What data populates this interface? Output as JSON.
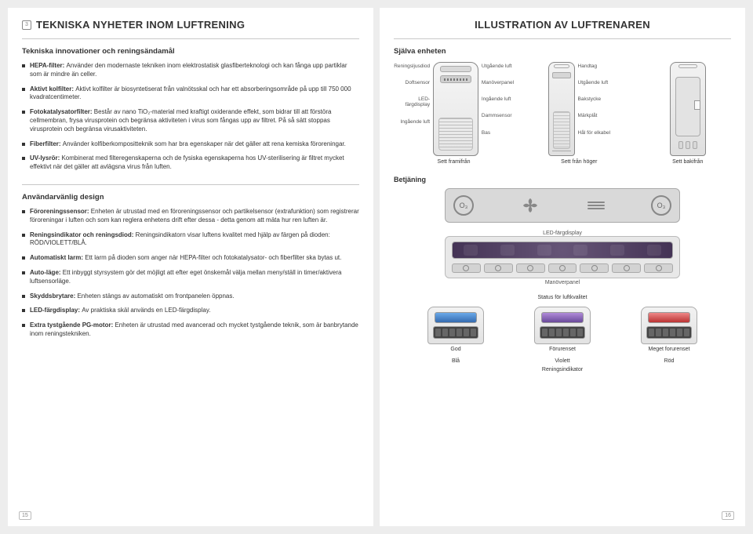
{
  "left": {
    "badge": "3",
    "title": "TEKNISKA NYHETER INOM LUFTRENING",
    "sub1": "Tekniska innovationer och reningsändamål",
    "items1": [
      {
        "bold": "HEPA-filter:",
        "text": "Använder den modernaste tekniken inom elektrostatisk glasfiberteknologi och kan fånga upp partiklar som är mindre än celler."
      },
      {
        "bold": "Aktivt kolfilter:",
        "text": "Aktivt kolfilter är biosyntetiserat från valnötsskal och har ett absorberingsområde på upp till 750 000 kvadratcentimeter."
      },
      {
        "bold": "Fotokatalysatorfilter:",
        "text": "Består av nano TiO₂-material med kraftigt oxiderande effekt, som bidrar till att förstöra cellmembran, frysa virusprotein och begränsa aktiviteten i virus som fångas upp av filtret. På så sätt stoppas virusprotein och begränsa virusaktiviteten."
      },
      {
        "bold": "Fiberfilter:",
        "text": "Använder kolfiberkompositteknik som har bra egenskaper när det gäller att rena kemiska föroreningar."
      },
      {
        "bold": "UV-lysrör:",
        "text": "Kombinerat med filteregenskaperna och de fysiska egenskaperna hos UV-sterilisering är filtret mycket effektivt när det gäller att avlägsna virus från luften."
      }
    ],
    "sub2": "Användarvänlig design",
    "items2": [
      {
        "bold": "Föroreningssensor:",
        "text": "Enheten är utrustad med en föroreningssensor och partikelsensor (extrafunktion) som registrerar föroreningar i luften och som kan reglera enhetens drift efter dessa - detta genom att mäta hur ren luften är."
      },
      {
        "bold": "Reningsindikator och reningsdiod:",
        "text": "Reningsindikatorn visar luftens kvalitet med hjälp av färgen på dioden: RÖD/VIOLETT/BLÅ."
      },
      {
        "bold": "Automatiskt larm:",
        "text": "Ett larm på dioden som anger när HEPA-filter och fotokatalysator- och fiberfilter ska bytas ut."
      },
      {
        "bold": "Auto-läge:",
        "text": "Ett inbyggt styrsystem gör det möjligt att efter eget önskemål välja mellan meny/ställ in timer/aktivera luftsensorläge."
      },
      {
        "bold": "Skyddsbrytare:",
        "text": "Enheten stängs av automatiskt om frontpanelen öppnas."
      },
      {
        "bold": "LED-färgdisplay:",
        "text": "Av praktiska skäl används en LED-färgdisplay."
      },
      {
        "bold": "Extra tystgående PG-motor:",
        "text": "Enheten är utrustad med avancerad och mycket tystgående teknik, som är banbrytande inom reningstekniken."
      }
    ],
    "pagenum": "15"
  },
  "right": {
    "title": "ILLUSTRATION AV LUFTRENAREN",
    "sub1": "Själva enheten",
    "labels": {
      "front_left": [
        "Reningsljusdiod",
        "Doftsensor",
        "LED-färgdisplay",
        "Ingående luft"
      ],
      "front_right": [
        "Utgående luft",
        "Manöverpanel",
        "Ingående luft",
        "Dammsensor",
        "Bas"
      ],
      "side_right": [
        "Handtag",
        "Utgående luft",
        "Bakstycke",
        "Märkplåt",
        "Hål för elkabel"
      ]
    },
    "views": {
      "front": "Sett framifrån",
      "side": "Sett från höger",
      "back": "Sett bakifrån"
    },
    "betjaning": "Betjäning",
    "led_caption": "LED-färgdisplay",
    "panel_caption": "Manöverpanel",
    "status_title": "Status för luftkvalitet",
    "status": [
      {
        "name": "God",
        "color": "Blå",
        "class": "blue"
      },
      {
        "name": "Förurenset",
        "color": "Violett",
        "class": "violet"
      },
      {
        "name": "Meget forurenset",
        "color": "Röd",
        "class": "red"
      }
    ],
    "indicator_caption": "Reningsindikator",
    "ozone": {
      "o3a": "O₃",
      "o3b": "O₃"
    },
    "pagenum": "16"
  }
}
